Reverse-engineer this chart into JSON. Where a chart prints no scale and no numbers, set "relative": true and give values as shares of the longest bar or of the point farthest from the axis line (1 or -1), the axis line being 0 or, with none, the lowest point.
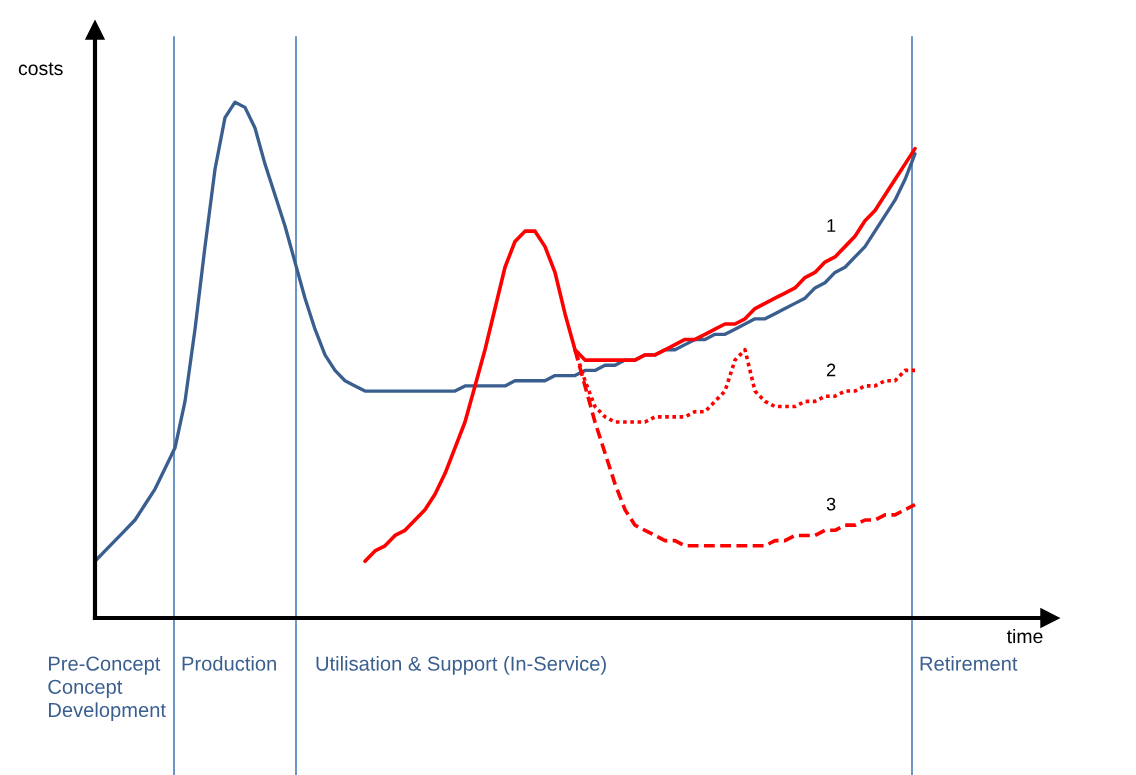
{
  "chart_data": {
    "type": "line",
    "relative": true,
    "xlabel": "time",
    "ylabel": "costs",
    "legend": false,
    "marker": "none",
    "categories": [
      null,
      null,
      null,
      null,
      null,
      null,
      null,
      null,
      null,
      null,
      null,
      null,
      null,
      null,
      null,
      null,
      null,
      null,
      null,
      null,
      null,
      null,
      null,
      null,
      null,
      null,
      null,
      null,
      null,
      null,
      null,
      null,
      null,
      null,
      null,
      null,
      null,
      null,
      null,
      null,
      null,
      null,
      null,
      null,
      null,
      null,
      null,
      null,
      null,
      null,
      null,
      null,
      null,
      null,
      null,
      null,
      null,
      null,
      null,
      null,
      null,
      null,
      null,
      null,
      null,
      null,
      null,
      null,
      null,
      null,
      null,
      null,
      null,
      null,
      null,
      null,
      null,
      null,
      null,
      null,
      null,
      null,
      null
    ],
    "series": [
      {
        "color": "#3a5f8f",
        "line_style": "solid",
        "values": [
          0.11,
          0.13,
          0.15,
          0.17,
          0.19,
          0.22,
          0.25,
          0.29,
          0.33,
          0.42,
          0.56,
          0.72,
          0.87,
          0.97,
          1.0,
          0.99,
          0.95,
          0.88,
          0.82,
          0.76,
          0.69,
          0.62,
          0.56,
          0.51,
          0.48,
          0.46,
          0.45,
          0.44,
          0.44,
          0.44,
          0.44,
          0.44,
          0.44,
          0.44,
          0.44,
          0.44,
          0.44,
          0.45,
          0.45,
          0.45,
          0.45,
          0.45,
          0.46,
          0.46,
          0.46,
          0.46,
          0.47,
          0.47,
          0.47,
          0.48,
          0.48,
          0.49,
          0.49,
          0.5,
          0.5,
          0.51,
          0.51,
          0.52,
          0.52,
          0.53,
          0.54,
          0.54,
          0.55,
          0.55,
          0.56,
          0.57,
          0.58,
          0.58,
          0.59,
          0.6,
          0.61,
          0.62,
          0.64,
          0.65,
          0.67,
          0.68,
          0.7,
          0.72,
          0.75,
          0.78,
          0.81,
          0.85,
          0.9
        ]
      },
      {
        "name": "1",
        "color": "#ff0000",
        "line_style": "solid",
        "values": [
          null,
          null,
          null,
          null,
          null,
          null,
          null,
          null,
          null,
          null,
          null,
          null,
          null,
          null,
          null,
          null,
          null,
          null,
          null,
          null,
          null,
          null,
          null,
          null,
          null,
          null,
          null,
          0.11,
          0.13,
          0.14,
          0.16,
          0.17,
          0.19,
          0.21,
          0.24,
          0.28,
          0.33,
          0.38,
          0.45,
          0.52,
          0.6,
          0.68,
          0.73,
          0.75,
          0.75,
          0.72,
          0.67,
          0.59,
          0.52,
          0.5,
          0.5,
          0.5,
          0.5,
          0.5,
          0.5,
          0.51,
          0.51,
          0.52,
          0.53,
          0.54,
          0.54,
          0.55,
          0.56,
          0.57,
          0.57,
          0.58,
          0.6,
          0.61,
          0.62,
          0.63,
          0.64,
          0.66,
          0.67,
          0.69,
          0.7,
          0.72,
          0.74,
          0.77,
          0.79,
          0.82,
          0.85,
          0.88,
          0.91
        ]
      },
      {
        "name": "2",
        "color": "#ff0000",
        "line_style": "dotted",
        "values": [
          null,
          null,
          null,
          null,
          null,
          null,
          null,
          null,
          null,
          null,
          null,
          null,
          null,
          null,
          null,
          null,
          null,
          null,
          null,
          null,
          null,
          null,
          null,
          null,
          null,
          null,
          null,
          null,
          null,
          null,
          null,
          null,
          null,
          null,
          null,
          null,
          null,
          null,
          null,
          null,
          null,
          null,
          null,
          null,
          null,
          null,
          null,
          null,
          0.52,
          0.46,
          0.41,
          0.39,
          0.38,
          0.38,
          0.38,
          0.38,
          0.39,
          0.39,
          0.39,
          0.39,
          0.4,
          0.4,
          0.42,
          0.44,
          0.5,
          0.52,
          0.44,
          0.42,
          0.41,
          0.41,
          0.41,
          0.42,
          0.42,
          0.43,
          0.43,
          0.44,
          0.44,
          0.45,
          0.45,
          0.46,
          0.46,
          0.48,
          0.48
        ]
      },
      {
        "name": "3",
        "color": "#ff0000",
        "line_style": "dashed",
        "values": [
          null,
          null,
          null,
          null,
          null,
          null,
          null,
          null,
          null,
          null,
          null,
          null,
          null,
          null,
          null,
          null,
          null,
          null,
          null,
          null,
          null,
          null,
          null,
          null,
          null,
          null,
          null,
          null,
          null,
          null,
          null,
          null,
          null,
          null,
          null,
          null,
          null,
          null,
          null,
          null,
          null,
          null,
          null,
          null,
          null,
          null,
          null,
          null,
          0.52,
          0.45,
          0.38,
          0.32,
          0.26,
          0.21,
          0.18,
          0.17,
          0.16,
          0.15,
          0.15,
          0.14,
          0.14,
          0.14,
          0.14,
          0.14,
          0.14,
          0.14,
          0.14,
          0.14,
          0.15,
          0.15,
          0.16,
          0.16,
          0.16,
          0.17,
          0.17,
          0.18,
          0.18,
          0.19,
          0.19,
          0.2,
          0.2,
          0.21,
          0.22
        ]
      }
    ],
    "annotations": [
      "Pre-Concept\nConcept\nDevelopment",
      "Production",
      "Utilisation & Support (In-Service)",
      "Retirement"
    ]
  }
}
